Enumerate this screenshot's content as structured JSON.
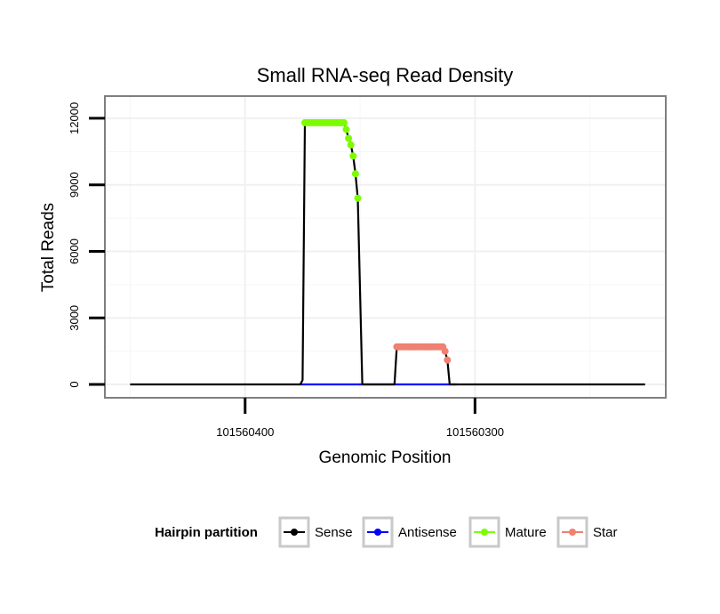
{
  "chart_data": {
    "type": "line",
    "title": "Small RNA-seq Read Density",
    "xlabel": "Genomic Position",
    "ylabel": "Total Reads",
    "x_reversed": true,
    "xlim": [
      101560461,
      101560217
    ],
    "ylim": [
      -600,
      13000
    ],
    "x_ticks": [
      101560400,
      101560300
    ],
    "x_tick_labels": [
      "101560400",
      "101560300"
    ],
    "y_ticks": [
      0,
      3000,
      6000,
      9000,
      12000
    ],
    "y_tick_labels": [
      "0",
      "3000",
      "6000",
      "9000",
      "12000"
    ],
    "legend": {
      "title": "Hairpin partition",
      "position": "bottom",
      "entries": [
        {
          "key": "sense",
          "label": "Sense",
          "color": "#000000"
        },
        {
          "key": "antisense",
          "label": "Antisense",
          "color": "#0000ff"
        },
        {
          "key": "mature",
          "label": "Mature",
          "color": "#7cfc00"
        },
        {
          "key": "star",
          "label": "Star",
          "color": "#f08070"
        }
      ]
    },
    "series": [
      {
        "name": "Sense",
        "color": "#000000",
        "marker": "none",
        "x": [
          101560450,
          101560376,
          101560375,
          101560374,
          101560357,
          101560356,
          101560355,
          101560354,
          101560353,
          101560352,
          101560351,
          101560349,
          101560335,
          101560334,
          101560333,
          101560314,
          101560313,
          101560312,
          101560311,
          101560310,
          101560226
        ],
        "y": [
          0,
          0,
          200,
          11800,
          11800,
          11500,
          11100,
          10800,
          10300,
          9500,
          8400,
          0,
          0,
          1700,
          1700,
          1700,
          1500,
          1100,
          0,
          0,
          0
        ]
      },
      {
        "name": "Antisense",
        "color": "#0000ff",
        "marker": "none",
        "x": [
          101560376,
          101560349,
          101560348,
          101560310,
          101560308
        ],
        "y": [
          0,
          0,
          0,
          0,
          0
        ]
      },
      {
        "name": "Mature",
        "color": "#7cfc00",
        "marker": "point",
        "x": [
          101560374,
          101560373,
          101560372,
          101560371,
          101560370,
          101560369,
          101560368,
          101560367,
          101560366,
          101560365,
          101560364,
          101560363,
          101560362,
          101560361,
          101560360,
          101560359,
          101560358,
          101560357,
          101560356,
          101560355,
          101560354,
          101560353,
          101560352,
          101560351
        ],
        "y": [
          11800,
          11800,
          11800,
          11800,
          11800,
          11800,
          11800,
          11800,
          11800,
          11800,
          11800,
          11800,
          11800,
          11800,
          11800,
          11800,
          11800,
          11800,
          11500,
          11100,
          10800,
          10300,
          9500,
          8400
        ]
      },
      {
        "name": "Star",
        "color": "#f08070",
        "marker": "point",
        "x": [
          101560334,
          101560333,
          101560332,
          101560331,
          101560330,
          101560329,
          101560328,
          101560327,
          101560326,
          101560325,
          101560324,
          101560323,
          101560322,
          101560321,
          101560320,
          101560319,
          101560318,
          101560317,
          101560316,
          101560315,
          101560314,
          101560313,
          101560312
        ],
        "y": [
          1700,
          1700,
          1700,
          1700,
          1700,
          1700,
          1700,
          1700,
          1700,
          1700,
          1700,
          1700,
          1700,
          1700,
          1700,
          1700,
          1700,
          1700,
          1700,
          1700,
          1700,
          1500,
          1100
        ]
      }
    ]
  }
}
